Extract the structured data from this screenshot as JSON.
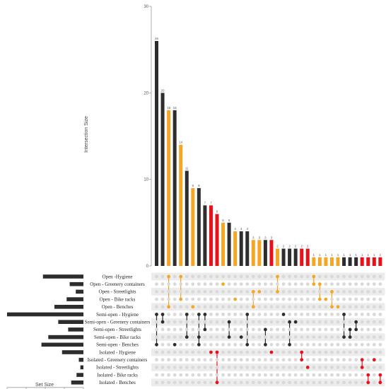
{
  "chart_data": {
    "type": "upset",
    "ylabel": "Intersection Size",
    "set_size_label": "Set Size",
    "ylim": [
      0,
      30
    ],
    "y_ticks": [
      0,
      10,
      20,
      30
    ],
    "set_size_ticks": [
      100,
      75,
      50,
      25,
      0
    ],
    "set_size_max": 100,
    "colors": {
      "open": "#f5a623",
      "semi_open": "#2d2d2d",
      "isolated": "#e8111a",
      "dot_inactive": "#d9d9d9",
      "row_shade": "#ececec"
    },
    "sets": [
      {
        "name": "Open -Hygiene",
        "group": "open",
        "size": 53
      },
      {
        "name": "Open - Greenery containers",
        "group": "open",
        "size": 18
      },
      {
        "name": "Open - Streetlights",
        "group": "open",
        "size": 10
      },
      {
        "name": "Open - Bike racks",
        "group": "open",
        "size": 22
      },
      {
        "name": "Open - Benches",
        "group": "open",
        "size": 38
      },
      {
        "name": "Semi-open - Hygiene",
        "group": "semi_open",
        "size": 100
      },
      {
        "name": "Semi-open - Greenery containers",
        "group": "semi_open",
        "size": 33
      },
      {
        "name": "Semi-open - Streetlights",
        "group": "semi_open",
        "size": 20
      },
      {
        "name": "Semi-open - Bike racks",
        "group": "semi_open",
        "size": 46
      },
      {
        "name": "Semi-open - Benches",
        "group": "semi_open",
        "size": 55
      },
      {
        "name": "Isolated - Hygiene",
        "group": "isolated",
        "size": 28
      },
      {
        "name": "Isolated - Greenery containers",
        "group": "isolated",
        "size": 6
      },
      {
        "name": "Isolated - Streetlights",
        "group": "isolated",
        "size": 4
      },
      {
        "name": "Isolated - Bike racks",
        "group": "isolated",
        "size": 9
      },
      {
        "name": "Isolated - Benches",
        "group": "isolated",
        "size": 16
      }
    ],
    "intersections": [
      {
        "value": 26,
        "group": "semi_open",
        "sets": [
          5,
          9
        ]
      },
      {
        "value": 20,
        "group": "semi_open",
        "sets": [
          5,
          6
        ]
      },
      {
        "value": 18,
        "group": "open",
        "sets": [
          0,
          4
        ]
      },
      {
        "value": 18,
        "group": "semi_open",
        "sets": [
          9
        ]
      },
      {
        "value": 14,
        "group": "open",
        "sets": [
          0,
          3
        ]
      },
      {
        "value": 11,
        "group": "semi_open",
        "sets": [
          5,
          8
        ]
      },
      {
        "value": 9,
        "group": "open",
        "sets": [
          4
        ]
      },
      {
        "value": 9,
        "group": "semi_open",
        "sets": [
          5,
          8,
          9
        ]
      },
      {
        "value": 7,
        "group": "semi_open",
        "sets": [
          5,
          7
        ]
      },
      {
        "value": 7,
        "group": "isolated",
        "sets": [
          10
        ]
      },
      {
        "value": 6,
        "group": "isolated",
        "sets": [
          10,
          14
        ]
      },
      {
        "value": 5,
        "group": "open",
        "sets": [
          1
        ]
      },
      {
        "value": 5,
        "group": "semi_open",
        "sets": [
          6,
          8
        ]
      },
      {
        "value": 4,
        "group": "open",
        "sets": [
          3
        ]
      },
      {
        "value": 4,
        "group": "semi_open",
        "sets": [
          8
        ]
      },
      {
        "value": 4,
        "group": "semi_open",
        "sets": [
          5,
          9
        ]
      },
      {
        "value": 3,
        "group": "open",
        "sets": [
          2,
          4
        ]
      },
      {
        "value": 3,
        "group": "open",
        "sets": [
          2
        ]
      },
      {
        "value": 3,
        "group": "semi_open",
        "sets": [
          7,
          9
        ]
      },
      {
        "value": 3,
        "group": "isolated",
        "sets": [
          10
        ]
      },
      {
        "value": 2,
        "group": "open",
        "sets": [
          0,
          2
        ]
      },
      {
        "value": 2,
        "group": "semi_open",
        "sets": [
          5
        ]
      },
      {
        "value": 2,
        "group": "semi_open",
        "sets": [
          6,
          9
        ]
      },
      {
        "value": 2,
        "group": "semi_open",
        "sets": [
          6
        ]
      },
      {
        "value": 2,
        "group": "isolated",
        "sets": [
          10,
          11
        ]
      },
      {
        "value": 2,
        "group": "isolated",
        "sets": [
          12
        ]
      },
      {
        "value": 1,
        "group": "open",
        "sets": [
          0,
          1
        ]
      },
      {
        "value": 1,
        "group": "open",
        "sets": [
          1,
          3
        ]
      },
      {
        "value": 1,
        "group": "open",
        "sets": [
          3
        ]
      },
      {
        "value": 1,
        "group": "open",
        "sets": [
          2,
          4
        ]
      },
      {
        "value": 1,
        "group": "open",
        "sets": [
          4
        ]
      },
      {
        "value": 1,
        "group": "semi_open",
        "sets": [
          5,
          8
        ]
      },
      {
        "value": 1,
        "group": "semi_open",
        "sets": [
          7,
          8
        ]
      },
      {
        "value": 1,
        "group": "semi_open",
        "sets": [
          6,
          7
        ]
      },
      {
        "value": 1,
        "group": "isolated",
        "sets": [
          11,
          12
        ]
      },
      {
        "value": 1,
        "group": "isolated",
        "sets": [
          13,
          14
        ]
      },
      {
        "value": 1,
        "group": "isolated",
        "sets": [
          11
        ]
      },
      {
        "value": 1,
        "group": "isolated",
        "sets": [
          13,
          14
        ]
      }
    ]
  }
}
